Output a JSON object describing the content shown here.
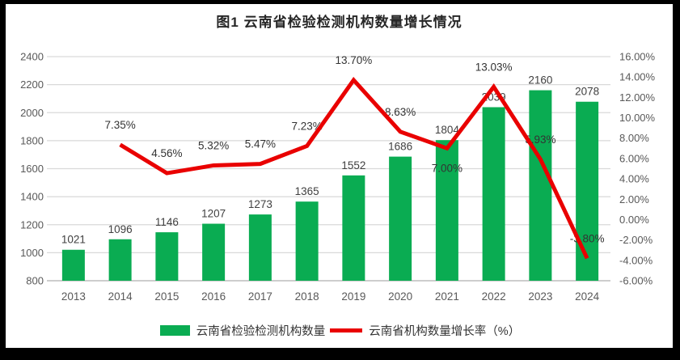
{
  "title": "图1 云南省检验检测机构数量增长情况",
  "colors": {
    "bar": "#0AAC52",
    "line": "#E90000",
    "grid": "#D9D9D9",
    "axis_line": "#BFBFBF",
    "tick_text": "#595959",
    "bar_label_text": "#404040",
    "line_label_text": "#333333",
    "frame": "#000000",
    "plot_background": "#FFFFFF"
  },
  "legend": [
    {
      "type": "bar",
      "label": "云南省检验检测机构数量"
    },
    {
      "type": "line",
      "label": "云南省机构数量增长率（%）"
    }
  ],
  "chart_data": {
    "type": "bar+line combo",
    "title": "图1 云南省检验检测机构数量增长情况",
    "categories": [
      "2013",
      "2014",
      "2015",
      "2016",
      "2017",
      "2018",
      "2019",
      "2020",
      "2021",
      "2022",
      "2023",
      "2024"
    ],
    "series": [
      {
        "name": "云南省检验检测机构数量",
        "type": "bar",
        "axis": "left",
        "values": [
          1021,
          1096,
          1146,
          1207,
          1273,
          1365,
          1552,
          1686,
          1804,
          2039,
          2160,
          2078
        ],
        "data_labels": [
          "1021",
          "1096",
          "1146",
          "1207",
          "1273",
          "1365",
          "1552",
          "1686",
          "1804",
          "2039",
          "2160",
          "2078"
        ]
      },
      {
        "name": "云南省机构数量增长率（%）",
        "type": "line",
        "axis": "right",
        "values": [
          null,
          7.35,
          4.56,
          5.32,
          5.47,
          7.23,
          13.7,
          8.63,
          7.0,
          13.03,
          5.93,
          -3.8
        ],
        "data_labels": [
          "",
          "7.35%",
          "4.56%",
          "5.32%",
          "5.47%",
          "7.23%",
          "13.70%",
          "8.63%",
          "7.00%",
          "13.03%",
          "5.93%",
          "-3.80%"
        ],
        "label_positions": [
          "",
          "above",
          "above",
          "above",
          "above",
          "above",
          "above",
          "above",
          "below",
          "above",
          "above",
          "above"
        ]
      }
    ],
    "left_axis": {
      "min": 800,
      "max": 2400,
      "tick_labels": [
        "2400",
        "2200",
        "2000",
        "1800",
        "1600",
        "1400",
        "1200",
        "1000",
        "800"
      ]
    },
    "right_axis": {
      "min": -6,
      "max": 16,
      "tick_labels": [
        "16.00%",
        "14.00%",
        "12.00%",
        "10.00%",
        "8.00%",
        "6.00%",
        "4.00%",
        "2.00%",
        "0.00%",
        "-2.00%",
        "-4.00%",
        "-6.00%"
      ]
    },
    "grid": "horizontal",
    "legend_position": "bottom"
  }
}
